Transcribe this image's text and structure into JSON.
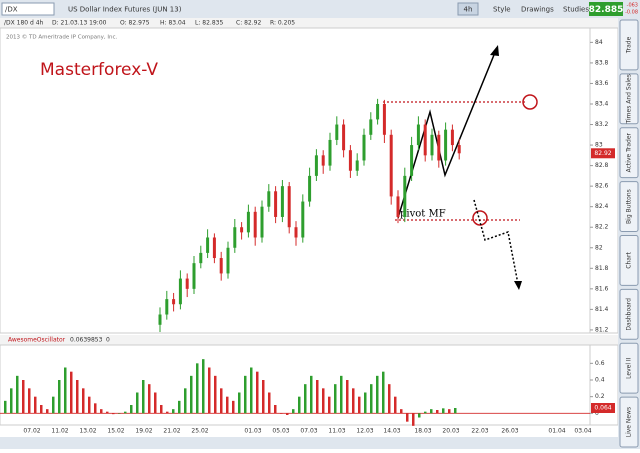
{
  "toolbar": {
    "symbol": "/DX",
    "description": "US Dollar Index Futures (JUN 13)",
    "interval": "4h",
    "buttons": [
      "Style",
      "Drawings",
      "Studies"
    ],
    "last": "82.885",
    "change": "-063",
    "change_pct": "-0.08"
  },
  "info_bar": [
    "/DX 180 d 4h",
    "D: 21.03.13 19:00",
    "O: 82.975",
    "H: 83.04",
    "L: 82.835",
    "C: 82.92",
    "R: 0.205"
  ],
  "copyright": "2013 © TD Ameritrade IP Company, Inc.",
  "watermark": "Masterforex-V",
  "annotation": "pivot MF",
  "side_tabs": [
    "Trade",
    "Times And Sales",
    "Active Trader",
    "Big Buttons",
    "Chart",
    "Dashboard",
    "Level II",
    "Live News"
  ],
  "price_chart": {
    "type": "candlestick",
    "ylim": [
      81.17,
      84.14
    ],
    "yticks": [
      84,
      83.8,
      83.6,
      83.4,
      83.2,
      83,
      82.8,
      82.6,
      82.4,
      82.2,
      82,
      81.8,
      81.6,
      81.4,
      81.2
    ],
    "up_color": "#2e9e2e",
    "down_color": "#d42a2a",
    "last_label": "82.92",
    "candles": [
      [
        81.25,
        81.42,
        81.18,
        81.35
      ],
      [
        81.35,
        81.58,
        81.3,
        81.5
      ],
      [
        81.5,
        81.56,
        81.38,
        81.45
      ],
      [
        81.45,
        81.78,
        81.4,
        81.7
      ],
      [
        81.7,
        81.75,
        81.52,
        81.6
      ],
      [
        81.6,
        81.92,
        81.55,
        81.85
      ],
      [
        81.85,
        82.02,
        81.8,
        81.95
      ],
      [
        81.95,
        82.18,
        81.9,
        82.1
      ],
      [
        82.1,
        82.14,
        81.85,
        81.9
      ],
      [
        81.9,
        81.96,
        81.68,
        81.75
      ],
      [
        81.75,
        82.06,
        81.7,
        82.0
      ],
      [
        82.0,
        82.28,
        81.95,
        82.2
      ],
      [
        82.2,
        82.25,
        82.08,
        82.15
      ],
      [
        82.15,
        82.42,
        82.1,
        82.35
      ],
      [
        82.35,
        82.4,
        82.02,
        82.1
      ],
      [
        82.1,
        82.46,
        82.05,
        82.4
      ],
      [
        82.4,
        82.62,
        82.35,
        82.55
      ],
      [
        82.55,
        82.6,
        82.24,
        82.3
      ],
      [
        82.3,
        82.66,
        82.25,
        82.6
      ],
      [
        82.6,
        82.64,
        82.14,
        82.2
      ],
      [
        82.2,
        82.26,
        82.02,
        82.1
      ],
      [
        82.1,
        82.52,
        82.05,
        82.45
      ],
      [
        82.45,
        82.78,
        82.4,
        82.7
      ],
      [
        82.7,
        82.96,
        82.65,
        82.9
      ],
      [
        82.9,
        82.95,
        82.72,
        82.8
      ],
      [
        82.8,
        83.12,
        82.75,
        83.05
      ],
      [
        83.05,
        83.28,
        83.0,
        83.2
      ],
      [
        83.2,
        83.25,
        82.88,
        82.95
      ],
      [
        82.95,
        83.0,
        82.68,
        82.75
      ],
      [
        82.75,
        82.92,
        82.7,
        82.85
      ],
      [
        82.85,
        83.16,
        82.8,
        83.1
      ],
      [
        83.1,
        83.32,
        83.05,
        83.25
      ],
      [
        83.25,
        83.45,
        83.2,
        83.4
      ],
      [
        83.4,
        83.44,
        83.02,
        83.1
      ],
      [
        83.1,
        83.15,
        82.42,
        82.5
      ],
      [
        82.5,
        82.56,
        82.24,
        82.3
      ],
      [
        82.3,
        82.78,
        82.25,
        82.7
      ],
      [
        82.7,
        83.08,
        82.65,
        83.0
      ],
      [
        83.0,
        83.28,
        82.95,
        83.2
      ],
      [
        83.2,
        83.25,
        82.84,
        82.9
      ],
      [
        82.9,
        83.16,
        82.85,
        83.1
      ],
      [
        83.1,
        83.14,
        82.78,
        82.85
      ],
      [
        82.85,
        83.22,
        82.8,
        83.15
      ],
      [
        83.15,
        83.2,
        82.94,
        83.0
      ],
      [
        83.0,
        83.06,
        82.86,
        82.92
      ]
    ]
  },
  "oscillator": {
    "type": "bar",
    "name": "AwesomeOscillator",
    "value_text": "0.0639853",
    "zero_text": "0",
    "last_label": "0.064",
    "ylim": [
      -0.14,
      0.82
    ],
    "yticks": [
      0.6,
      0.4,
      0.2,
      0
    ],
    "up_color": "#2e9e2e",
    "down_color": "#d42a2a",
    "values": [
      0.15,
      0.3,
      0.45,
      0.4,
      0.3,
      0.2,
      0.1,
      0.05,
      0.2,
      0.4,
      0.55,
      0.5,
      0.4,
      0.3,
      0.2,
      0.12,
      0.05,
      0.02,
      -0.01,
      0.0,
      0.02,
      0.1,
      0.25,
      0.4,
      0.35,
      0.25,
      0.1,
      0.02,
      0.05,
      0.15,
      0.3,
      0.45,
      0.6,
      0.65,
      0.55,
      0.45,
      0.3,
      0.2,
      0.15,
      0.25,
      0.45,
      0.55,
      0.5,
      0.4,
      0.25,
      0.1,
      0.0,
      -0.02,
      0.05,
      0.2,
      0.35,
      0.45,
      0.4,
      0.3,
      0.2,
      0.35,
      0.45,
      0.4,
      0.3,
      0.2,
      0.25,
      0.35,
      0.45,
      0.5,
      0.35,
      0.2,
      0.05,
      -0.1,
      -0.15,
      -0.05,
      0.02,
      0.05,
      0.04,
      0.06,
      0.05,
      0.064
    ]
  },
  "dates": [
    "07.02",
    "11.02",
    "13.02",
    "15.02",
    "19.02",
    "21.02",
    "25.02",
    "01.03",
    "05.03",
    "07.03",
    "11.03",
    "12.03",
    "14.03",
    "18.03",
    "20.03",
    "22.03",
    "26.03",
    "01.04",
    "03.04"
  ]
}
